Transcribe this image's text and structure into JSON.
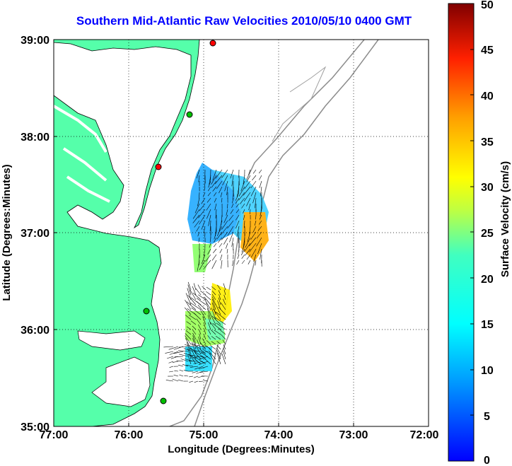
{
  "title": "Southern Mid-Atlantic Raw Velocities 2010/05/10 0400 GMT",
  "map": {
    "xlabel": "Longitude (Degrees:Minutes)",
    "ylabel": "Latitude (Degrees:Minutes)",
    "x_ticks": [
      "77:00",
      "76:00",
      "75:00",
      "74:00",
      "73:00",
      "72:00"
    ],
    "y_ticks": [
      "39:00",
      "38:00",
      "37:00",
      "36:00",
      "35:00"
    ],
    "land_color": "#55ffaa",
    "grid": "dotted"
  },
  "colorbar": {
    "label": "Surface Velocity (cm/s)",
    "ticks": [
      "50",
      "45",
      "40",
      "35",
      "30",
      "25",
      "20",
      "15",
      "10",
      "5",
      "0"
    ],
    "range": [
      0,
      50
    ],
    "colormap": "jet"
  },
  "stations": [
    {
      "id": "a",
      "color": "#ff0000"
    },
    {
      "id": "b",
      "color": "#00c000"
    },
    {
      "id": "c",
      "color": "#ff0000"
    },
    {
      "id": "d",
      "color": "#00c000"
    },
    {
      "id": "e",
      "color": "#00c000"
    }
  ]
}
